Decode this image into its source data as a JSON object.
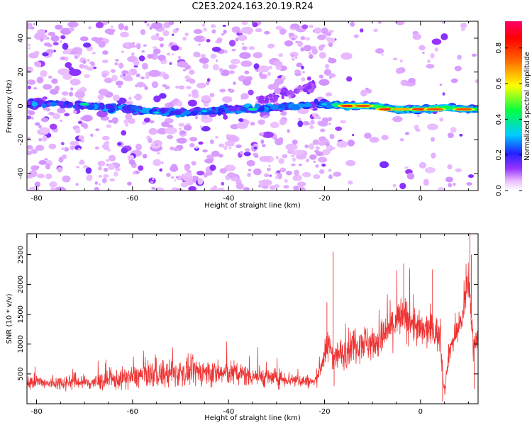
{
  "title": "C2E3.2024.163.20.19.R24",
  "chart_data": [
    {
      "type": "heatmap",
      "xlabel": "Height of straight line (km)",
      "ylabel": "Frequency (Hz)",
      "xlim": [
        -82,
        12
      ],
      "ylim": [
        -50,
        50
      ],
      "xticks": [
        -80,
        -60,
        -40,
        -20,
        0
      ],
      "yticks": [
        -40,
        -20,
        0,
        20,
        40
      ],
      "colorbar": {
        "label": "Normalized spectral amplitude",
        "range": [
          0,
          0.95
        ],
        "ticks": [
          0.0,
          0.2,
          0.4,
          0.6,
          0.8
        ]
      },
      "ridge": [
        {
          "x": -82,
          "y": 1
        },
        {
          "x": -75,
          "y": 1
        },
        {
          "x": -70,
          "y": 0
        },
        {
          "x": -65,
          "y": -1
        },
        {
          "x": -60,
          "y": -2
        },
        {
          "x": -55,
          "y": -3
        },
        {
          "x": -50,
          "y": -4
        },
        {
          "x": -45,
          "y": -3
        },
        {
          "x": -40,
          "y": -2
        },
        {
          "x": -35,
          "y": -2
        },
        {
          "x": -30,
          "y": -1
        },
        {
          "x": -25,
          "y": 0
        },
        {
          "x": -20,
          "y": 1
        },
        {
          "x": -15,
          "y": 0
        },
        {
          "x": -10,
          "y": 0
        },
        {
          "x": -5,
          "y": -2
        },
        {
          "x": 0,
          "y": -2
        },
        {
          "x": 5,
          "y": -1
        },
        {
          "x": 10,
          "y": -2
        },
        {
          "x": 12,
          "y": -2
        }
      ],
      "hotspots": [
        {
          "x": -15,
          "y": 0,
          "v": 0.85
        },
        {
          "x": -12,
          "y": 0,
          "v": 0.8
        },
        {
          "x": -7,
          "y": -2,
          "v": 0.85
        },
        {
          "x": -4,
          "y": -2,
          "v": 0.7
        },
        {
          "x": 0,
          "y": -2,
          "v": 0.85
        },
        {
          "x": 3,
          "y": -2,
          "v": 0.8
        },
        {
          "x": 9,
          "y": -2,
          "v": 0.8
        },
        {
          "x": -70,
          "y": 1,
          "v": 0.45
        },
        {
          "x": -35,
          "y": -2,
          "v": 0.45
        },
        {
          "x": -20,
          "y": 1,
          "v": 0.35
        },
        {
          "x": -55,
          "y": -4,
          "v": 0.35
        },
        {
          "x": -45,
          "y": -3,
          "v": 0.35
        }
      ]
    },
    {
      "type": "line",
      "xlabel": "Height of straight line (km)",
      "ylabel": "SNR (10 * v/v)",
      "xlim": [
        -82,
        12
      ],
      "ylim": [
        0,
        2850
      ],
      "xticks": [
        -80,
        -60,
        -40,
        -20,
        0
      ],
      "yticks": [
        500,
        1000,
        1500,
        2000,
        2500
      ],
      "color": "#ee3333",
      "series": [
        {
          "x": [
            -82,
            -80,
            -78,
            -76,
            -74,
            -72,
            -70,
            -68,
            -66,
            -64,
            -62,
            -60,
            -58,
            -56,
            -54,
            -52,
            -50,
            -48,
            -46,
            -44,
            -42,
            -40,
            -38,
            -36,
            -34,
            -32,
            -30,
            -28,
            -26,
            -24,
            -22,
            -20.5,
            -19,
            -18,
            -16,
            -14,
            -12,
            -10,
            -8,
            -6,
            -4,
            -2,
            0,
            2,
            4,
            5,
            6,
            8,
            9,
            10,
            11,
            12
          ],
          "mean": [
            350,
            380,
            330,
            350,
            360,
            380,
            350,
            360,
            380,
            390,
            420,
            450,
            480,
            500,
            480,
            500,
            520,
            530,
            540,
            520,
            500,
            520,
            500,
            480,
            470,
            440,
            430,
            420,
            400,
            380,
            360,
            700,
            1000,
            800,
            850,
            1000,
            1050,
            1000,
            1100,
            1300,
            1450,
            1400,
            1200,
            1250,
            1150,
            200,
            900,
            1300,
            1500,
            2100,
            1000,
            1150
          ],
          "spread": [
            160,
            180,
            160,
            180,
            200,
            220,
            200,
            220,
            240,
            260,
            280,
            300,
            320,
            350,
            360,
            360,
            360,
            360,
            360,
            340,
            330,
            330,
            320,
            300,
            280,
            260,
            240,
            220,
            200,
            180,
            160,
            350,
            420,
            400,
            420,
            480,
            500,
            450,
            500,
            560,
            580,
            560,
            480,
            480,
            460,
            150,
            320,
            360,
            400,
            500,
            350,
            300
          ]
        }
      ]
    }
  ]
}
